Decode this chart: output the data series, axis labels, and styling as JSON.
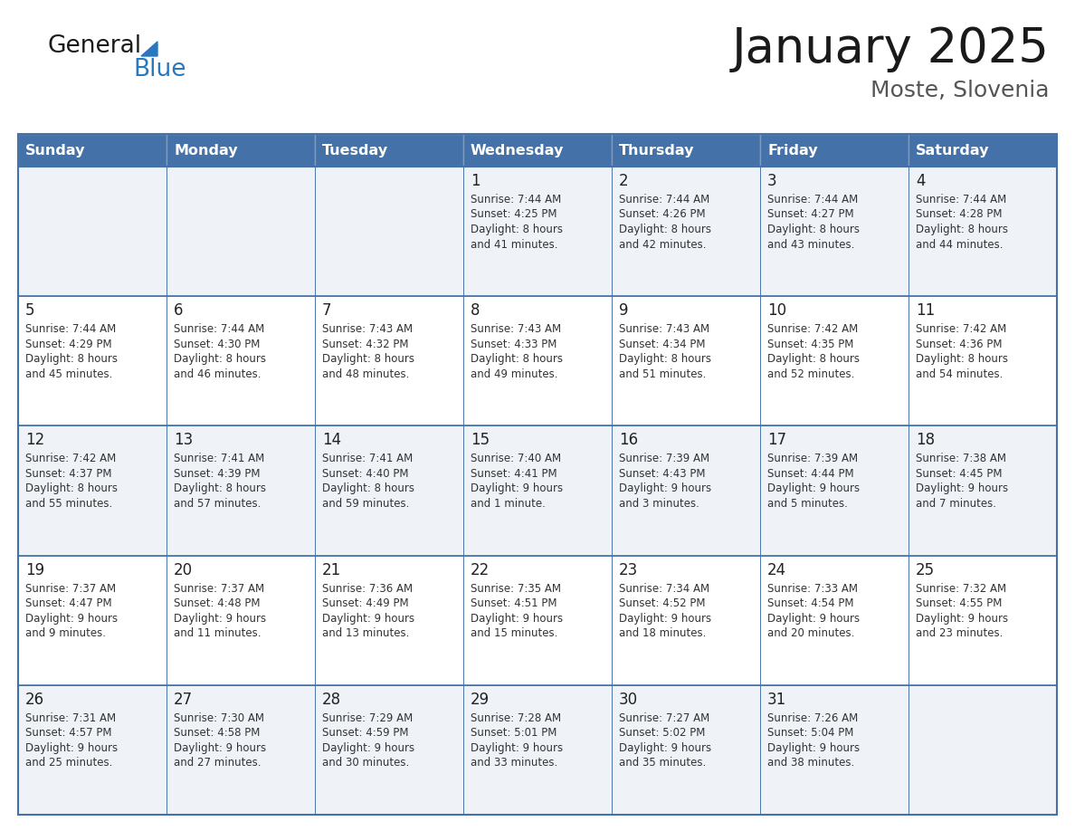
{
  "title": "January 2025",
  "subtitle": "Moste, Slovenia",
  "header_color": "#4472a8",
  "header_text_color": "#ffffff",
  "cell_bg_light": "#eff3f8",
  "cell_bg_white": "#ffffff",
  "border_color": "#4472a8",
  "text_color": "#333333",
  "day_number_color": "#222222",
  "title_color": "#1a1a1a",
  "subtitle_color": "#555555",
  "logo_general_color": "#1a1a1a",
  "logo_blue_color": "#2878c0",
  "day_names": [
    "Sunday",
    "Monday",
    "Tuesday",
    "Wednesday",
    "Thursday",
    "Friday",
    "Saturday"
  ],
  "days": [
    {
      "row": 0,
      "col": 0,
      "num": "",
      "sunrise": "",
      "sunset": "",
      "daylight_line1": "",
      "daylight_line2": ""
    },
    {
      "row": 0,
      "col": 1,
      "num": "",
      "sunrise": "",
      "sunset": "",
      "daylight_line1": "",
      "daylight_line2": ""
    },
    {
      "row": 0,
      "col": 2,
      "num": "",
      "sunrise": "",
      "sunset": "",
      "daylight_line1": "",
      "daylight_line2": ""
    },
    {
      "row": 0,
      "col": 3,
      "num": "1",
      "sunrise": "7:44 AM",
      "sunset": "4:25 PM",
      "daylight_line1": "8 hours",
      "daylight_line2": "and 41 minutes."
    },
    {
      "row": 0,
      "col": 4,
      "num": "2",
      "sunrise": "7:44 AM",
      "sunset": "4:26 PM",
      "daylight_line1": "8 hours",
      "daylight_line2": "and 42 minutes."
    },
    {
      "row": 0,
      "col": 5,
      "num": "3",
      "sunrise": "7:44 AM",
      "sunset": "4:27 PM",
      "daylight_line1": "8 hours",
      "daylight_line2": "and 43 minutes."
    },
    {
      "row": 0,
      "col": 6,
      "num": "4",
      "sunrise": "7:44 AM",
      "sunset": "4:28 PM",
      "daylight_line1": "8 hours",
      "daylight_line2": "and 44 minutes."
    },
    {
      "row": 1,
      "col": 0,
      "num": "5",
      "sunrise": "7:44 AM",
      "sunset": "4:29 PM",
      "daylight_line1": "8 hours",
      "daylight_line2": "and 45 minutes."
    },
    {
      "row": 1,
      "col": 1,
      "num": "6",
      "sunrise": "7:44 AM",
      "sunset": "4:30 PM",
      "daylight_line1": "8 hours",
      "daylight_line2": "and 46 minutes."
    },
    {
      "row": 1,
      "col": 2,
      "num": "7",
      "sunrise": "7:43 AM",
      "sunset": "4:32 PM",
      "daylight_line1": "8 hours",
      "daylight_line2": "and 48 minutes."
    },
    {
      "row": 1,
      "col": 3,
      "num": "8",
      "sunrise": "7:43 AM",
      "sunset": "4:33 PM",
      "daylight_line1": "8 hours",
      "daylight_line2": "and 49 minutes."
    },
    {
      "row": 1,
      "col": 4,
      "num": "9",
      "sunrise": "7:43 AM",
      "sunset": "4:34 PM",
      "daylight_line1": "8 hours",
      "daylight_line2": "and 51 minutes."
    },
    {
      "row": 1,
      "col": 5,
      "num": "10",
      "sunrise": "7:42 AM",
      "sunset": "4:35 PM",
      "daylight_line1": "8 hours",
      "daylight_line2": "and 52 minutes."
    },
    {
      "row": 1,
      "col": 6,
      "num": "11",
      "sunrise": "7:42 AM",
      "sunset": "4:36 PM",
      "daylight_line1": "8 hours",
      "daylight_line2": "and 54 minutes."
    },
    {
      "row": 2,
      "col": 0,
      "num": "12",
      "sunrise": "7:42 AM",
      "sunset": "4:37 PM",
      "daylight_line1": "8 hours",
      "daylight_line2": "and 55 minutes."
    },
    {
      "row": 2,
      "col": 1,
      "num": "13",
      "sunrise": "7:41 AM",
      "sunset": "4:39 PM",
      "daylight_line1": "8 hours",
      "daylight_line2": "and 57 minutes."
    },
    {
      "row": 2,
      "col": 2,
      "num": "14",
      "sunrise": "7:41 AM",
      "sunset": "4:40 PM",
      "daylight_line1": "8 hours",
      "daylight_line2": "and 59 minutes."
    },
    {
      "row": 2,
      "col": 3,
      "num": "15",
      "sunrise": "7:40 AM",
      "sunset": "4:41 PM",
      "daylight_line1": "9 hours",
      "daylight_line2": "and 1 minute."
    },
    {
      "row": 2,
      "col": 4,
      "num": "16",
      "sunrise": "7:39 AM",
      "sunset": "4:43 PM",
      "daylight_line1": "9 hours",
      "daylight_line2": "and 3 minutes."
    },
    {
      "row": 2,
      "col": 5,
      "num": "17",
      "sunrise": "7:39 AM",
      "sunset": "4:44 PM",
      "daylight_line1": "9 hours",
      "daylight_line2": "and 5 minutes."
    },
    {
      "row": 2,
      "col": 6,
      "num": "18",
      "sunrise": "7:38 AM",
      "sunset": "4:45 PM",
      "daylight_line1": "9 hours",
      "daylight_line2": "and 7 minutes."
    },
    {
      "row": 3,
      "col": 0,
      "num": "19",
      "sunrise": "7:37 AM",
      "sunset": "4:47 PM",
      "daylight_line1": "9 hours",
      "daylight_line2": "and 9 minutes."
    },
    {
      "row": 3,
      "col": 1,
      "num": "20",
      "sunrise": "7:37 AM",
      "sunset": "4:48 PM",
      "daylight_line1": "9 hours",
      "daylight_line2": "and 11 minutes."
    },
    {
      "row": 3,
      "col": 2,
      "num": "21",
      "sunrise": "7:36 AM",
      "sunset": "4:49 PM",
      "daylight_line1": "9 hours",
      "daylight_line2": "and 13 minutes."
    },
    {
      "row": 3,
      "col": 3,
      "num": "22",
      "sunrise": "7:35 AM",
      "sunset": "4:51 PM",
      "daylight_line1": "9 hours",
      "daylight_line2": "and 15 minutes."
    },
    {
      "row": 3,
      "col": 4,
      "num": "23",
      "sunrise": "7:34 AM",
      "sunset": "4:52 PM",
      "daylight_line1": "9 hours",
      "daylight_line2": "and 18 minutes."
    },
    {
      "row": 3,
      "col": 5,
      "num": "24",
      "sunrise": "7:33 AM",
      "sunset": "4:54 PM",
      "daylight_line1": "9 hours",
      "daylight_line2": "and 20 minutes."
    },
    {
      "row": 3,
      "col": 6,
      "num": "25",
      "sunrise": "7:32 AM",
      "sunset": "4:55 PM",
      "daylight_line1": "9 hours",
      "daylight_line2": "and 23 minutes."
    },
    {
      "row": 4,
      "col": 0,
      "num": "26",
      "sunrise": "7:31 AM",
      "sunset": "4:57 PM",
      "daylight_line1": "9 hours",
      "daylight_line2": "and 25 minutes."
    },
    {
      "row": 4,
      "col": 1,
      "num": "27",
      "sunrise": "7:30 AM",
      "sunset": "4:58 PM",
      "daylight_line1": "9 hours",
      "daylight_line2": "and 27 minutes."
    },
    {
      "row": 4,
      "col": 2,
      "num": "28",
      "sunrise": "7:29 AM",
      "sunset": "4:59 PM",
      "daylight_line1": "9 hours",
      "daylight_line2": "and 30 minutes."
    },
    {
      "row": 4,
      "col": 3,
      "num": "29",
      "sunrise": "7:28 AM",
      "sunset": "5:01 PM",
      "daylight_line1": "9 hours",
      "daylight_line2": "and 33 minutes."
    },
    {
      "row": 4,
      "col": 4,
      "num": "30",
      "sunrise": "7:27 AM",
      "sunset": "5:02 PM",
      "daylight_line1": "9 hours",
      "daylight_line2": "and 35 minutes."
    },
    {
      "row": 4,
      "col": 5,
      "num": "31",
      "sunrise": "7:26 AM",
      "sunset": "5:04 PM",
      "daylight_line1": "9 hours",
      "daylight_line2": "and 38 minutes."
    },
    {
      "row": 4,
      "col": 6,
      "num": "",
      "sunrise": "",
      "sunset": "",
      "daylight_line1": "",
      "daylight_line2": ""
    }
  ]
}
